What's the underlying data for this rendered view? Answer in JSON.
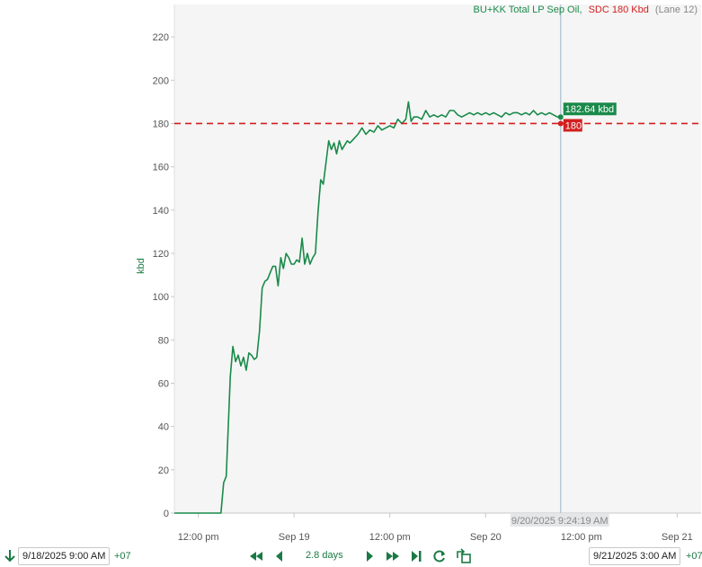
{
  "legend": {
    "series_text": "BU+KK Total LP Sep Oil,",
    "series_color": "#1a8a4a",
    "limit_text": "SDC 180 Kbd",
    "limit_color": "#d21f1f",
    "lane_text": "(Lane 12)"
  },
  "cursor": {
    "timestamp_label": "9/20/2025 9:24:19 AM",
    "value_label": "182.64 kbd",
    "limit_label": "180"
  },
  "toolbar": {
    "start_date": "9/18/2025 9:00 AM",
    "start_tz": "+07",
    "range_label": "2.8 days",
    "end_date": "9/21/2025 3:00 AM",
    "end_tz": "+07",
    "icons": [
      "arrow-down-icon",
      "skip-back-icon",
      "step-back-icon",
      "step-forward-icon",
      "fast-forward-icon",
      "skip-end-icon",
      "refresh-icon",
      "export-icon"
    ]
  },
  "chart_data": {
    "type": "line",
    "ylabel": "kbd",
    "ylim": [
      0,
      235
    ],
    "yticks": [
      0,
      20,
      40,
      60,
      80,
      100,
      120,
      140,
      160,
      180,
      200,
      220
    ],
    "xlim": [
      "2025-09-18T09:00",
      "2025-09-21T03:00"
    ],
    "xticks": [
      {
        "x": "2025-09-18T12:00",
        "label": "12:00 pm"
      },
      {
        "x": "2025-09-19T00:00",
        "label": "Sep 19"
      },
      {
        "x": "2025-09-19T12:00",
        "label": "12:00 pm"
      },
      {
        "x": "2025-09-20T00:00",
        "label": "Sep 20"
      },
      {
        "x": "2025-09-20T12:00",
        "label": "12:00 pm"
      },
      {
        "x": "2025-09-21T00:00",
        "label": "Sep 21"
      }
    ],
    "threshold": {
      "value": 180,
      "label": "SDC 180 Kbd",
      "style": "dashed"
    },
    "cursor_x": "2025-09-20T09:24",
    "series": [
      {
        "name": "BU+KK Total LP Sep Oil",
        "x": [
          "2025-09-18T09:00",
          "2025-09-18T14:50",
          "2025-09-18T15:10",
          "2025-09-18T15:30",
          "2025-09-18T16:00",
          "2025-09-18T16:20",
          "2025-09-18T16:40",
          "2025-09-18T17:00",
          "2025-09-18T17:20",
          "2025-09-18T17:40",
          "2025-09-18T18:00",
          "2025-09-18T18:20",
          "2025-09-18T18:40",
          "2025-09-18T19:00",
          "2025-09-18T19:20",
          "2025-09-18T19:40",
          "2025-09-18T20:00",
          "2025-09-18T20:20",
          "2025-09-18T20:40",
          "2025-09-18T21:00",
          "2025-09-18T21:20",
          "2025-09-18T21:40",
          "2025-09-18T22:00",
          "2025-09-18T22:20",
          "2025-09-18T22:40",
          "2025-09-18T23:00",
          "2025-09-18T23:20",
          "2025-09-18T23:40",
          "2025-09-19T00:00",
          "2025-09-19T00:20",
          "2025-09-19T00:40",
          "2025-09-19T01:00",
          "2025-09-19T01:20",
          "2025-09-19T01:40",
          "2025-09-19T02:00",
          "2025-09-19T02:20",
          "2025-09-19T02:40",
          "2025-09-19T03:00",
          "2025-09-19T03:20",
          "2025-09-19T03:40",
          "2025-09-19T04:00",
          "2025-09-19T04:20",
          "2025-09-19T04:40",
          "2025-09-19T05:00",
          "2025-09-19T05:20",
          "2025-09-19T05:40",
          "2025-09-19T06:00",
          "2025-09-19T06:20",
          "2025-09-19T06:40",
          "2025-09-19T07:00",
          "2025-09-19T07:30",
          "2025-09-19T08:00",
          "2025-09-19T08:30",
          "2025-09-19T09:00",
          "2025-09-19T09:30",
          "2025-09-19T10:00",
          "2025-09-19T10:30",
          "2025-09-19T11:00",
          "2025-09-19T11:30",
          "2025-09-19T12:00",
          "2025-09-19T12:30",
          "2025-09-19T13:00",
          "2025-09-19T13:30",
          "2025-09-19T14:00",
          "2025-09-19T14:20",
          "2025-09-19T14:40",
          "2025-09-19T15:00",
          "2025-09-19T15:30",
          "2025-09-19T16:00",
          "2025-09-19T16:30",
          "2025-09-19T17:00",
          "2025-09-19T17:30",
          "2025-09-19T18:00",
          "2025-09-19T18:30",
          "2025-09-19T19:00",
          "2025-09-19T19:30",
          "2025-09-19T20:00",
          "2025-09-19T20:30",
          "2025-09-19T21:00",
          "2025-09-19T21:30",
          "2025-09-19T22:00",
          "2025-09-19T22:30",
          "2025-09-19T23:00",
          "2025-09-19T23:30",
          "2025-09-20T00:00",
          "2025-09-20T00:30",
          "2025-09-20T01:00",
          "2025-09-20T01:30",
          "2025-09-20T02:00",
          "2025-09-20T02:30",
          "2025-09-20T03:00",
          "2025-09-20T03:30",
          "2025-09-20T04:00",
          "2025-09-20T04:30",
          "2025-09-20T05:00",
          "2025-09-20T05:30",
          "2025-09-20T06:00",
          "2025-09-20T06:30",
          "2025-09-20T07:00",
          "2025-09-20T07:30",
          "2025-09-20T08:00",
          "2025-09-20T08:30",
          "2025-09-20T09:00",
          "2025-09-20T09:24"
        ],
        "y": [
          0,
          0,
          14,
          17,
          63,
          77,
          70,
          73,
          68,
          72,
          66,
          74,
          73,
          71,
          72,
          84,
          104,
          107,
          108,
          111,
          114,
          114,
          105,
          118,
          113,
          120,
          118,
          115,
          115,
          117,
          116,
          127,
          115,
          120,
          115,
          118,
          120,
          139,
          154,
          152,
          162,
          172,
          168,
          171,
          166,
          172,
          168,
          170,
          172,
          171,
          173,
          175,
          178,
          175,
          177,
          176,
          179,
          177,
          178,
          179,
          178,
          182,
          180,
          182,
          190,
          181,
          183,
          183,
          182,
          186,
          183,
          184,
          183,
          184,
          183,
          186,
          186,
          184,
          183,
          184,
          185,
          184,
          185,
          184,
          185,
          184,
          185,
          184,
          183,
          185,
          184,
          185,
          185,
          184,
          185,
          184,
          186,
          184,
          185,
          184,
          185,
          184,
          183,
          183
        ]
      }
    ]
  }
}
